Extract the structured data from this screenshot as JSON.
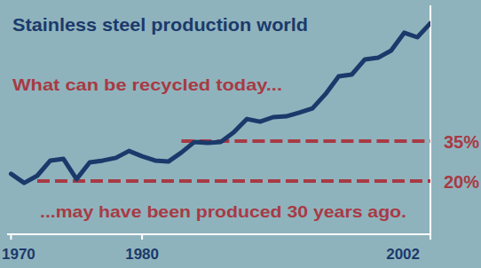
{
  "chart_data": {
    "type": "line",
    "title": "Stainless steel production world",
    "annotations": [
      "What can be recycled today...",
      "...may have been produced 30 years ago."
    ],
    "x": [
      1970,
      1971,
      1972,
      1973,
      1974,
      1975,
      1976,
      1977,
      1978,
      1979,
      1980,
      1981,
      1982,
      1983,
      1984,
      1985,
      1986,
      1987,
      1988,
      1989,
      1990,
      1991,
      1992,
      1993,
      1994,
      1995,
      1996,
      1997,
      1998,
      1999,
      2000,
      2001,
      2002
    ],
    "values": [
      22.7,
      19.3,
      22.0,
      27.7,
      28.3,
      20.7,
      27.0,
      27.7,
      28.7,
      31.3,
      29.3,
      27.7,
      27.3,
      30.7,
      34.7,
      34.3,
      34.7,
      38.3,
      43.3,
      42.3,
      44.0,
      44.3,
      45.7,
      47.3,
      52.7,
      59.3,
      60.0,
      65.7,
      66.3,
      69.0,
      75.7,
      74.0,
      79.3
    ],
    "color": "#1b3a6b",
    "xlim": [
      1969.7,
      2002
    ],
    "xticks": [
      1970,
      1980,
      2002
    ],
    "ylim": [
      0,
      86
    ],
    "tick_labels": "x",
    "reference_lines": [
      {
        "value": 35,
        "label": "35%",
        "x": [
          1983,
          2002
        ],
        "color": "#a83a44",
        "line_style": "dashed"
      },
      {
        "value": 20,
        "label": "20%",
        "x": [
          1972,
          2002
        ],
        "color": "#a83a44",
        "line_style": "dashed"
      }
    ]
  }
}
